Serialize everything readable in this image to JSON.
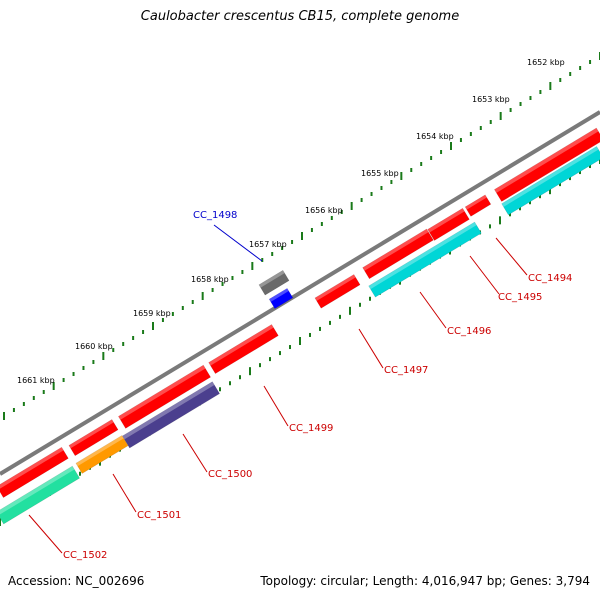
{
  "title": "Caulobacter crescentus CB15, complete genome",
  "accession": "Accession: NC_002696",
  "summary": "Topology: circular; Length: 4,016,947 bp; Genes: 3,794",
  "kbp_labels": [
    "1652 kbp",
    "1653 kbp",
    "1654 kbp",
    "1655 kbp",
    "1656 kbp",
    "1657 kbp",
    "1658 kbp",
    "1659 kbp",
    "1660 kbp",
    "1661 kbp"
  ],
  "colors": {
    "backbone": "#7a7a7a",
    "tick": "#1a7a1a",
    "red_gene": "#ff0000",
    "cyan_gene": "#00d6d6",
    "purple_gene": "#4b3f8e",
    "orange_gene": "#ff9900",
    "teal_gene": "#22e0a0",
    "gray_gene": "#6a6a6a",
    "blue_gene": "#0000ff",
    "label_red": "#cc0000",
    "label_blue": "#0000cc"
  },
  "gene_labels": [
    "CC_1494",
    "CC_1495",
    "CC_1496",
    "CC_1497",
    "CC_1498",
    "CC_1499",
    "CC_1500",
    "CC_1501",
    "CC_1502"
  ]
}
